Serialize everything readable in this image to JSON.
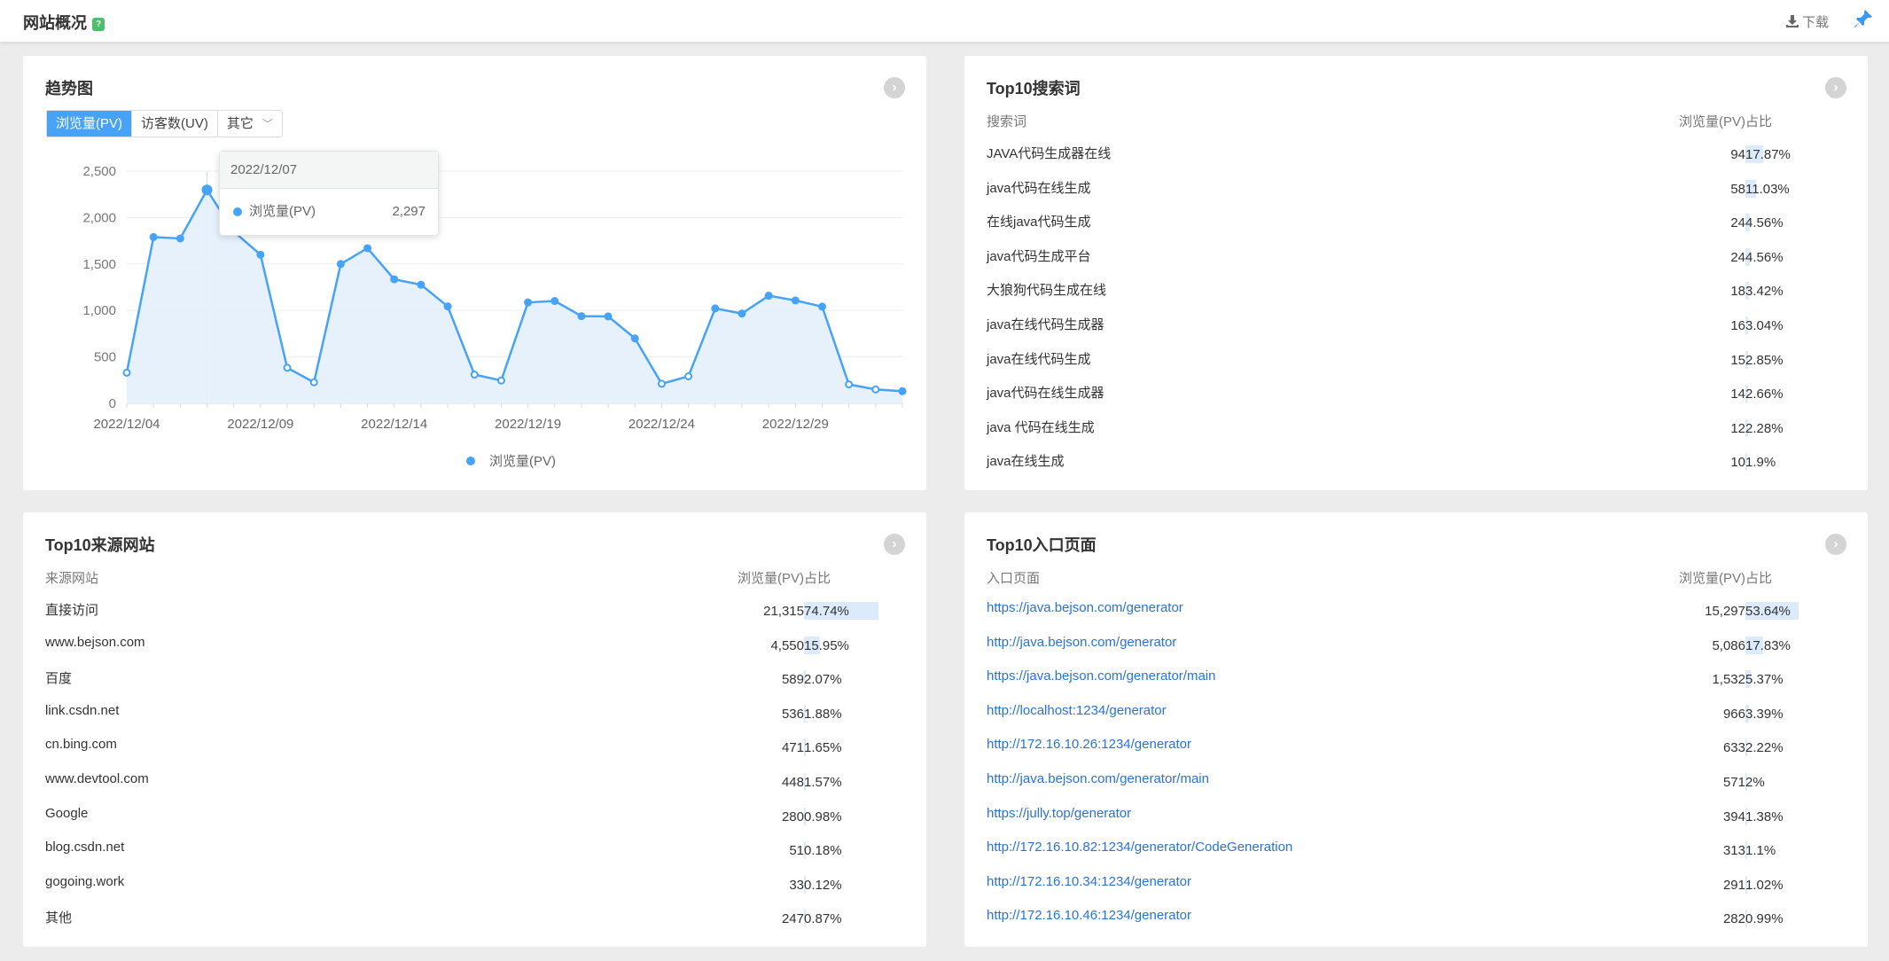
{
  "header": {
    "title": "网站概况",
    "help_icon": "?",
    "download_label": "下载"
  },
  "colors": {
    "accent": "#46a3f7",
    "area": "#e3effc",
    "bar": "#dcebfb",
    "link": "#2a73d6",
    "help_badge": "#4cbe6c"
  },
  "trend": {
    "title": "趋势图",
    "tabs": [
      {
        "label": "浏览量(PV)",
        "active": true
      },
      {
        "label": "访客数(UV)",
        "active": false
      },
      {
        "label": "其它",
        "active": false
      }
    ],
    "tooltip": {
      "date": "2022/12/07",
      "series": "浏览量(PV)",
      "value": "2,297"
    },
    "chart_data": {
      "type": "area",
      "x": [
        "2022/12/04",
        "2022/12/05",
        "2022/12/06",
        "2022/12/07",
        "2022/12/08",
        "2022/12/09",
        "2022/12/10",
        "2022/12/11",
        "2022/12/12",
        "2022/12/13",
        "2022/12/14",
        "2022/12/15",
        "2022/12/16",
        "2022/12/17",
        "2022/12/18",
        "2022/12/19",
        "2022/12/20",
        "2022/12/21",
        "2022/12/22",
        "2022/12/23",
        "2022/12/24",
        "2022/12/25",
        "2022/12/26",
        "2022/12/27",
        "2022/12/28",
        "2022/12/29",
        "2022/12/30",
        "2022/12/31",
        "2023/01/01",
        "2023/01/02"
      ],
      "series": [
        {
          "name": "浏览量(PV)",
          "values": [
            330,
            1790,
            1775,
            2297,
            1850,
            1600,
            383,
            227,
            1500,
            1670,
            1335,
            1277,
            1044,
            310,
            246,
            1086,
            1102,
            939,
            936,
            699,
            211,
            291,
            1022,
            967,
            1159,
            1108,
            1041,
            204,
            150,
            131
          ]
        }
      ],
      "x_tick_labels": [
        "2022/12/04",
        "2022/12/09",
        "2022/12/14",
        "2022/12/19",
        "2022/12/24",
        "2022/12/29"
      ],
      "y_tick_labels": [
        "0",
        "500",
        "1,000",
        "1,500",
        "2,000",
        "2,500"
      ],
      "ylim": [
        0,
        2500
      ],
      "grid": true,
      "legend": "bottom-center"
    }
  },
  "search": {
    "title": "Top10搜索词",
    "headers": [
      "搜索词",
      "浏览量(PV)",
      "占比"
    ],
    "rows": [
      {
        "name": "JAVA代码生成器在线",
        "pv": "94",
        "pct": "17.87%",
        "frac": 0.1787
      },
      {
        "name": "java代码在线生成",
        "pv": "58",
        "pct": "11.03%",
        "frac": 0.1103
      },
      {
        "name": "在线java代码生成",
        "pv": "24",
        "pct": "4.56%",
        "frac": 0.0456
      },
      {
        "name": "java代码生成平台",
        "pv": "24",
        "pct": "4.56%",
        "frac": 0.0456
      },
      {
        "name": "大狼狗代码生成在线",
        "pv": "18",
        "pct": "3.42%",
        "frac": 0.0342
      },
      {
        "name": "java在线代码生成器",
        "pv": "16",
        "pct": "3.04%",
        "frac": 0.0304
      },
      {
        "name": "java在线代码生成",
        "pv": "15",
        "pct": "2.85%",
        "frac": 0.0285
      },
      {
        "name": "java代码在线生成器",
        "pv": "14",
        "pct": "2.66%",
        "frac": 0.0266
      },
      {
        "name": "java 代码在线生成",
        "pv": "12",
        "pct": "2.28%",
        "frac": 0.0228
      },
      {
        "name": "java在线生成",
        "pv": "10",
        "pct": "1.9%",
        "frac": 0.019
      }
    ]
  },
  "sources": {
    "title": "Top10来源网站",
    "headers": [
      "来源网站",
      "浏览量(PV)",
      "占比"
    ],
    "rows": [
      {
        "name": "直接访问",
        "pv": "21,315",
        "pct": "74.74%",
        "frac": 0.7474
      },
      {
        "name": "www.bejson.com",
        "pv": "4,550",
        "pct": "15.95%",
        "frac": 0.1595
      },
      {
        "name": "百度",
        "pv": "589",
        "pct": "2.07%",
        "frac": 0.0207
      },
      {
        "name": "link.csdn.net",
        "pv": "536",
        "pct": "1.88%",
        "frac": 0.0188
      },
      {
        "name": "cn.bing.com",
        "pv": "471",
        "pct": "1.65%",
        "frac": 0.0165
      },
      {
        "name": "www.devtool.com",
        "pv": "448",
        "pct": "1.57%",
        "frac": 0.0157
      },
      {
        "name": "Google",
        "pv": "280",
        "pct": "0.98%",
        "frac": 0.0098
      },
      {
        "name": "blog.csdn.net",
        "pv": "51",
        "pct": "0.18%",
        "frac": 0.0018
      },
      {
        "name": "gogoing.work",
        "pv": "33",
        "pct": "0.12%",
        "frac": 0.0012
      },
      {
        "name": "其他",
        "pv": "247",
        "pct": "0.87%",
        "frac": 0.0087
      }
    ]
  },
  "entry": {
    "title": "Top10入口页面",
    "headers": [
      "入口页面",
      "浏览量(PV)",
      "占比"
    ],
    "rows": [
      {
        "name": "https://java.bejson.com/generator",
        "pv": "15,297",
        "pct": "53.64%",
        "frac": 0.5364
      },
      {
        "name": "http://java.bejson.com/generator",
        "pv": "5,086",
        "pct": "17.83%",
        "frac": 0.1783
      },
      {
        "name": "https://java.bejson.com/generator/main",
        "pv": "1,532",
        "pct": "5.37%",
        "frac": 0.0537
      },
      {
        "name": "http://localhost:1234/generator",
        "pv": "966",
        "pct": "3.39%",
        "frac": 0.0339
      },
      {
        "name": "http://172.16.10.26:1234/generator",
        "pv": "633",
        "pct": "2.22%",
        "frac": 0.0222
      },
      {
        "name": "http://java.bejson.com/generator/main",
        "pv": "571",
        "pct": "2%",
        "frac": 0.02
      },
      {
        "name": "https://jully.top/generator",
        "pv": "394",
        "pct": "1.38%",
        "frac": 0.0138
      },
      {
        "name": "http://172.16.10.82:1234/generator/CodeGeneration",
        "pv": "313",
        "pct": "1.1%",
        "frac": 0.011
      },
      {
        "name": "http://172.16.10.34:1234/generator",
        "pv": "291",
        "pct": "1.02%",
        "frac": 0.0102
      },
      {
        "name": "http://172.16.10.46:1234/generator",
        "pv": "282",
        "pct": "0.99%",
        "frac": 0.0099
      }
    ]
  }
}
